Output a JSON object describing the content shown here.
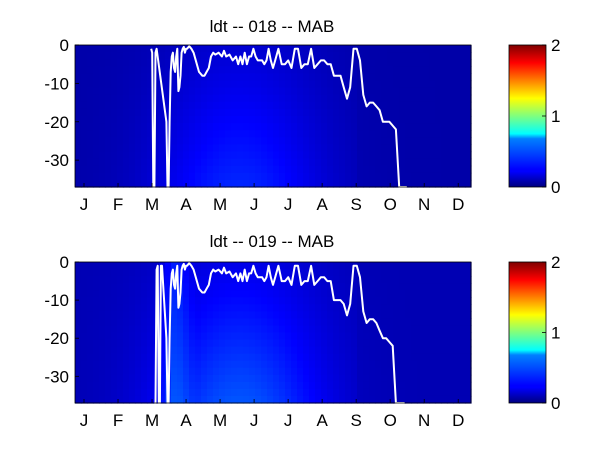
{
  "chart_data": [
    {
      "type": "heatmap",
      "title": "ldt -- 018 -- MAB",
      "xlabel": "",
      "ylabel": "",
      "x_tick_labels": [
        "J",
        "F",
        "M",
        "A",
        "M",
        "J",
        "J",
        "A",
        "S",
        "O",
        "N",
        "D"
      ],
      "y_ticks": [
        0,
        -10,
        -20,
        -30
      ],
      "ylim": [
        -37,
        0
      ],
      "xlim": [
        1,
        365
      ],
      "colorbar": {
        "min": 0,
        "max": 2,
        "ticks": [
          0,
          1,
          2
        ],
        "colormap": "jet"
      },
      "heat_description_values": {
        "base": 0.08,
        "max_value": 0.35
      },
      "line_color": "#ffffff",
      "line_x": [
        71,
        72,
        73,
        74,
        75,
        76,
        85,
        86,
        87,
        88,
        89,
        90,
        91,
        92,
        93,
        94,
        95,
        96,
        97,
        98,
        99,
        100,
        101,
        102,
        103,
        104,
        106,
        108,
        110,
        115,
        118,
        120,
        122,
        124,
        126,
        128,
        130,
        133,
        136,
        138,
        140,
        143,
        146,
        149,
        151,
        153,
        155,
        157,
        159,
        161,
        163,
        165,
        167,
        169,
        171,
        173,
        175,
        177,
        179,
        181,
        183,
        185,
        188,
        191,
        194,
        197,
        200,
        203,
        206,
        209,
        212,
        215,
        218,
        221,
        224,
        227,
        230,
        233,
        236,
        239,
        242,
        245,
        248,
        251,
        254,
        257,
        260,
        263,
        266,
        269,
        272,
        275,
        278,
        281,
        284,
        287,
        290,
        293,
        296,
        299,
        302,
        305,
        306
      ],
      "line_y": [
        -1,
        -2,
        -37,
        -37,
        -2,
        -1,
        -20,
        -37,
        -37,
        -20,
        -7,
        -3,
        -2,
        -6,
        -7,
        -3,
        -1,
        -12,
        -11,
        -8,
        -2,
        -1,
        -0.5,
        -2,
        -1,
        -1,
        -0.3,
        -1,
        -2,
        -7,
        -8,
        -8,
        -7,
        -6,
        -3,
        -2,
        -2.5,
        -2,
        -3,
        -1.5,
        -3,
        -2.5,
        -4,
        -3,
        -5,
        -3,
        -5,
        -2,
        -5,
        -3,
        -3,
        -1,
        -3,
        -4,
        -4,
        -4,
        -5,
        -4,
        -1,
        -4,
        -6,
        -4,
        -1,
        -5,
        -5,
        -4,
        -6,
        -1,
        -1,
        -6,
        -5,
        -5,
        -1,
        -6,
        -5,
        -4,
        -4,
        -5,
        -5,
        -8,
        -8,
        -8,
        -11,
        -14,
        -11,
        -1,
        -1,
        -4,
        -13,
        -16,
        -15,
        -15,
        -16,
        -17,
        -20,
        -20,
        -20,
        -21,
        -22,
        -37,
        -37,
        -37,
        -37
      ]
    },
    {
      "type": "heatmap",
      "title": "ldt -- 019 -- MAB",
      "xlabel": "",
      "ylabel": "",
      "x_tick_labels": [
        "J",
        "F",
        "M",
        "A",
        "M",
        "J",
        "J",
        "A",
        "S",
        "O",
        "N",
        "D"
      ],
      "y_ticks": [
        0,
        -10,
        -20,
        -30
      ],
      "ylim": [
        -37,
        0
      ],
      "xlim": [
        1,
        365
      ],
      "colorbar": {
        "min": 0,
        "max": 2,
        "ticks": [
          0,
          1,
          2
        ],
        "colormap": "jet"
      },
      "heat_description_values": {
        "base": 0.1,
        "max_value": 0.45
      },
      "line_color": "#ffffff",
      "line_x": [
        74,
        75,
        76,
        77,
        78,
        79,
        80,
        81,
        85,
        86,
        87,
        88,
        89,
        90,
        91,
        92,
        93,
        94,
        95,
        96,
        97,
        98,
        99,
        100,
        101,
        102,
        103,
        104,
        106,
        108,
        110,
        115,
        118,
        120,
        122,
        124,
        126,
        128,
        130,
        133,
        136,
        138,
        140,
        143,
        146,
        149,
        151,
        153,
        155,
        157,
        159,
        161,
        163,
        165,
        167,
        169,
        171,
        173,
        175,
        177,
        179,
        181,
        183,
        185,
        188,
        191,
        194,
        197,
        200,
        203,
        206,
        209,
        212,
        215,
        218,
        221,
        224,
        227,
        230,
        233,
        236,
        239,
        242,
        245,
        248,
        251,
        254,
        257,
        260,
        263,
        266,
        269,
        272,
        275,
        278,
        281,
        284,
        287,
        290,
        293,
        296,
        299,
        302,
        304
      ],
      "line_y": [
        -37,
        -37,
        -2,
        -1,
        -37,
        -37,
        -1,
        -1,
        -20,
        -37,
        -37,
        -20,
        -7,
        -3,
        -2,
        -6,
        -7,
        -3,
        -1,
        -12,
        -11,
        -8,
        -2,
        -1,
        -0.5,
        -2,
        -1,
        -1,
        -0.3,
        -1,
        -2,
        -7,
        -8,
        -8,
        -7,
        -6,
        -3,
        -2,
        -2.5,
        -2,
        -3,
        -1.5,
        -3,
        -2.5,
        -4,
        -3,
        -5,
        -3,
        -5,
        -2,
        -5,
        -3,
        -3,
        -1,
        -3,
        -4,
        -4,
        -4,
        -5,
        -4,
        -1,
        -4,
        -6,
        -4,
        -1,
        -5,
        -5,
        -4,
        -6,
        -1,
        -1,
        -6,
        -5,
        -5,
        -1,
        -6,
        -5,
        -4,
        -4,
        -5,
        -5,
        -10,
        -10,
        -10,
        -11,
        -14,
        -11,
        -1,
        -1,
        -4,
        -13,
        -16,
        -15,
        -15,
        -16,
        -18,
        -20,
        -20,
        -21,
        -22,
        -37,
        -37,
        -37,
        -37
      ]
    }
  ]
}
